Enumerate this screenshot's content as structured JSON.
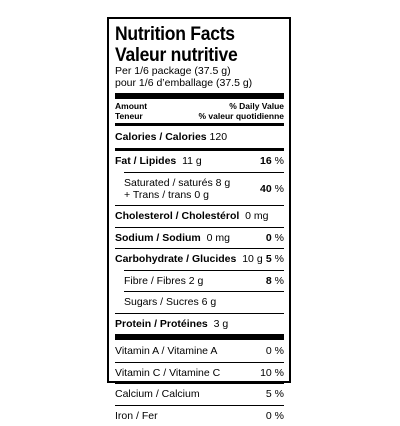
{
  "title_en": "Nutrition Facts",
  "title_fr": "Valeur nutritive",
  "serving_en": "Per 1/6 package (37.5 g)",
  "serving_fr": "pour 1/6 d’emballage (37.5 g)",
  "header": {
    "amount_en": "Amount",
    "amount_fr": "Teneur",
    "dv_en": "% Daily Value",
    "dv_fr": "% valeur quotidienne"
  },
  "calories": {
    "label": "Calories / Calories",
    "value": "120"
  },
  "fat": {
    "label": "Fat / Lipides",
    "value": "11 g",
    "pct_num": "16",
    "pct_sign": " %"
  },
  "saturated": {
    "label": "Saturated / saturés 8 g",
    "trans": "+ Trans / trans 0 g",
    "pct_num": "40",
    "pct_sign": " %"
  },
  "cholesterol": {
    "label": "Cholesterol / Cholestérol",
    "value": "0 mg"
  },
  "sodium": {
    "label": "Sodium / Sodium",
    "value": "0 mg",
    "pct_num": "0",
    "pct_sign": " %"
  },
  "carbohydrate": {
    "label": "Carbohydrate / Glucides",
    "value": "10 g",
    "pct_num": "5",
    "pct_sign": " %"
  },
  "fibre": {
    "label": "Fibre / Fibres 2 g",
    "pct_num": "8",
    "pct_sign": " %"
  },
  "sugars": {
    "label": "Sugars / Sucres 6 g"
  },
  "protein": {
    "label": "Protein / Protéines",
    "value": "3 g"
  },
  "vitamins": [
    {
      "label": "Vitamin A / Vitamine A",
      "pct": "0 %"
    },
    {
      "label": "Vitamin C / Vitamine C",
      "pct": "10 %"
    },
    {
      "label": "Calcium / Calcium",
      "pct": "5 %"
    },
    {
      "label": "Iron / Fer",
      "pct": "0 %"
    }
  ]
}
